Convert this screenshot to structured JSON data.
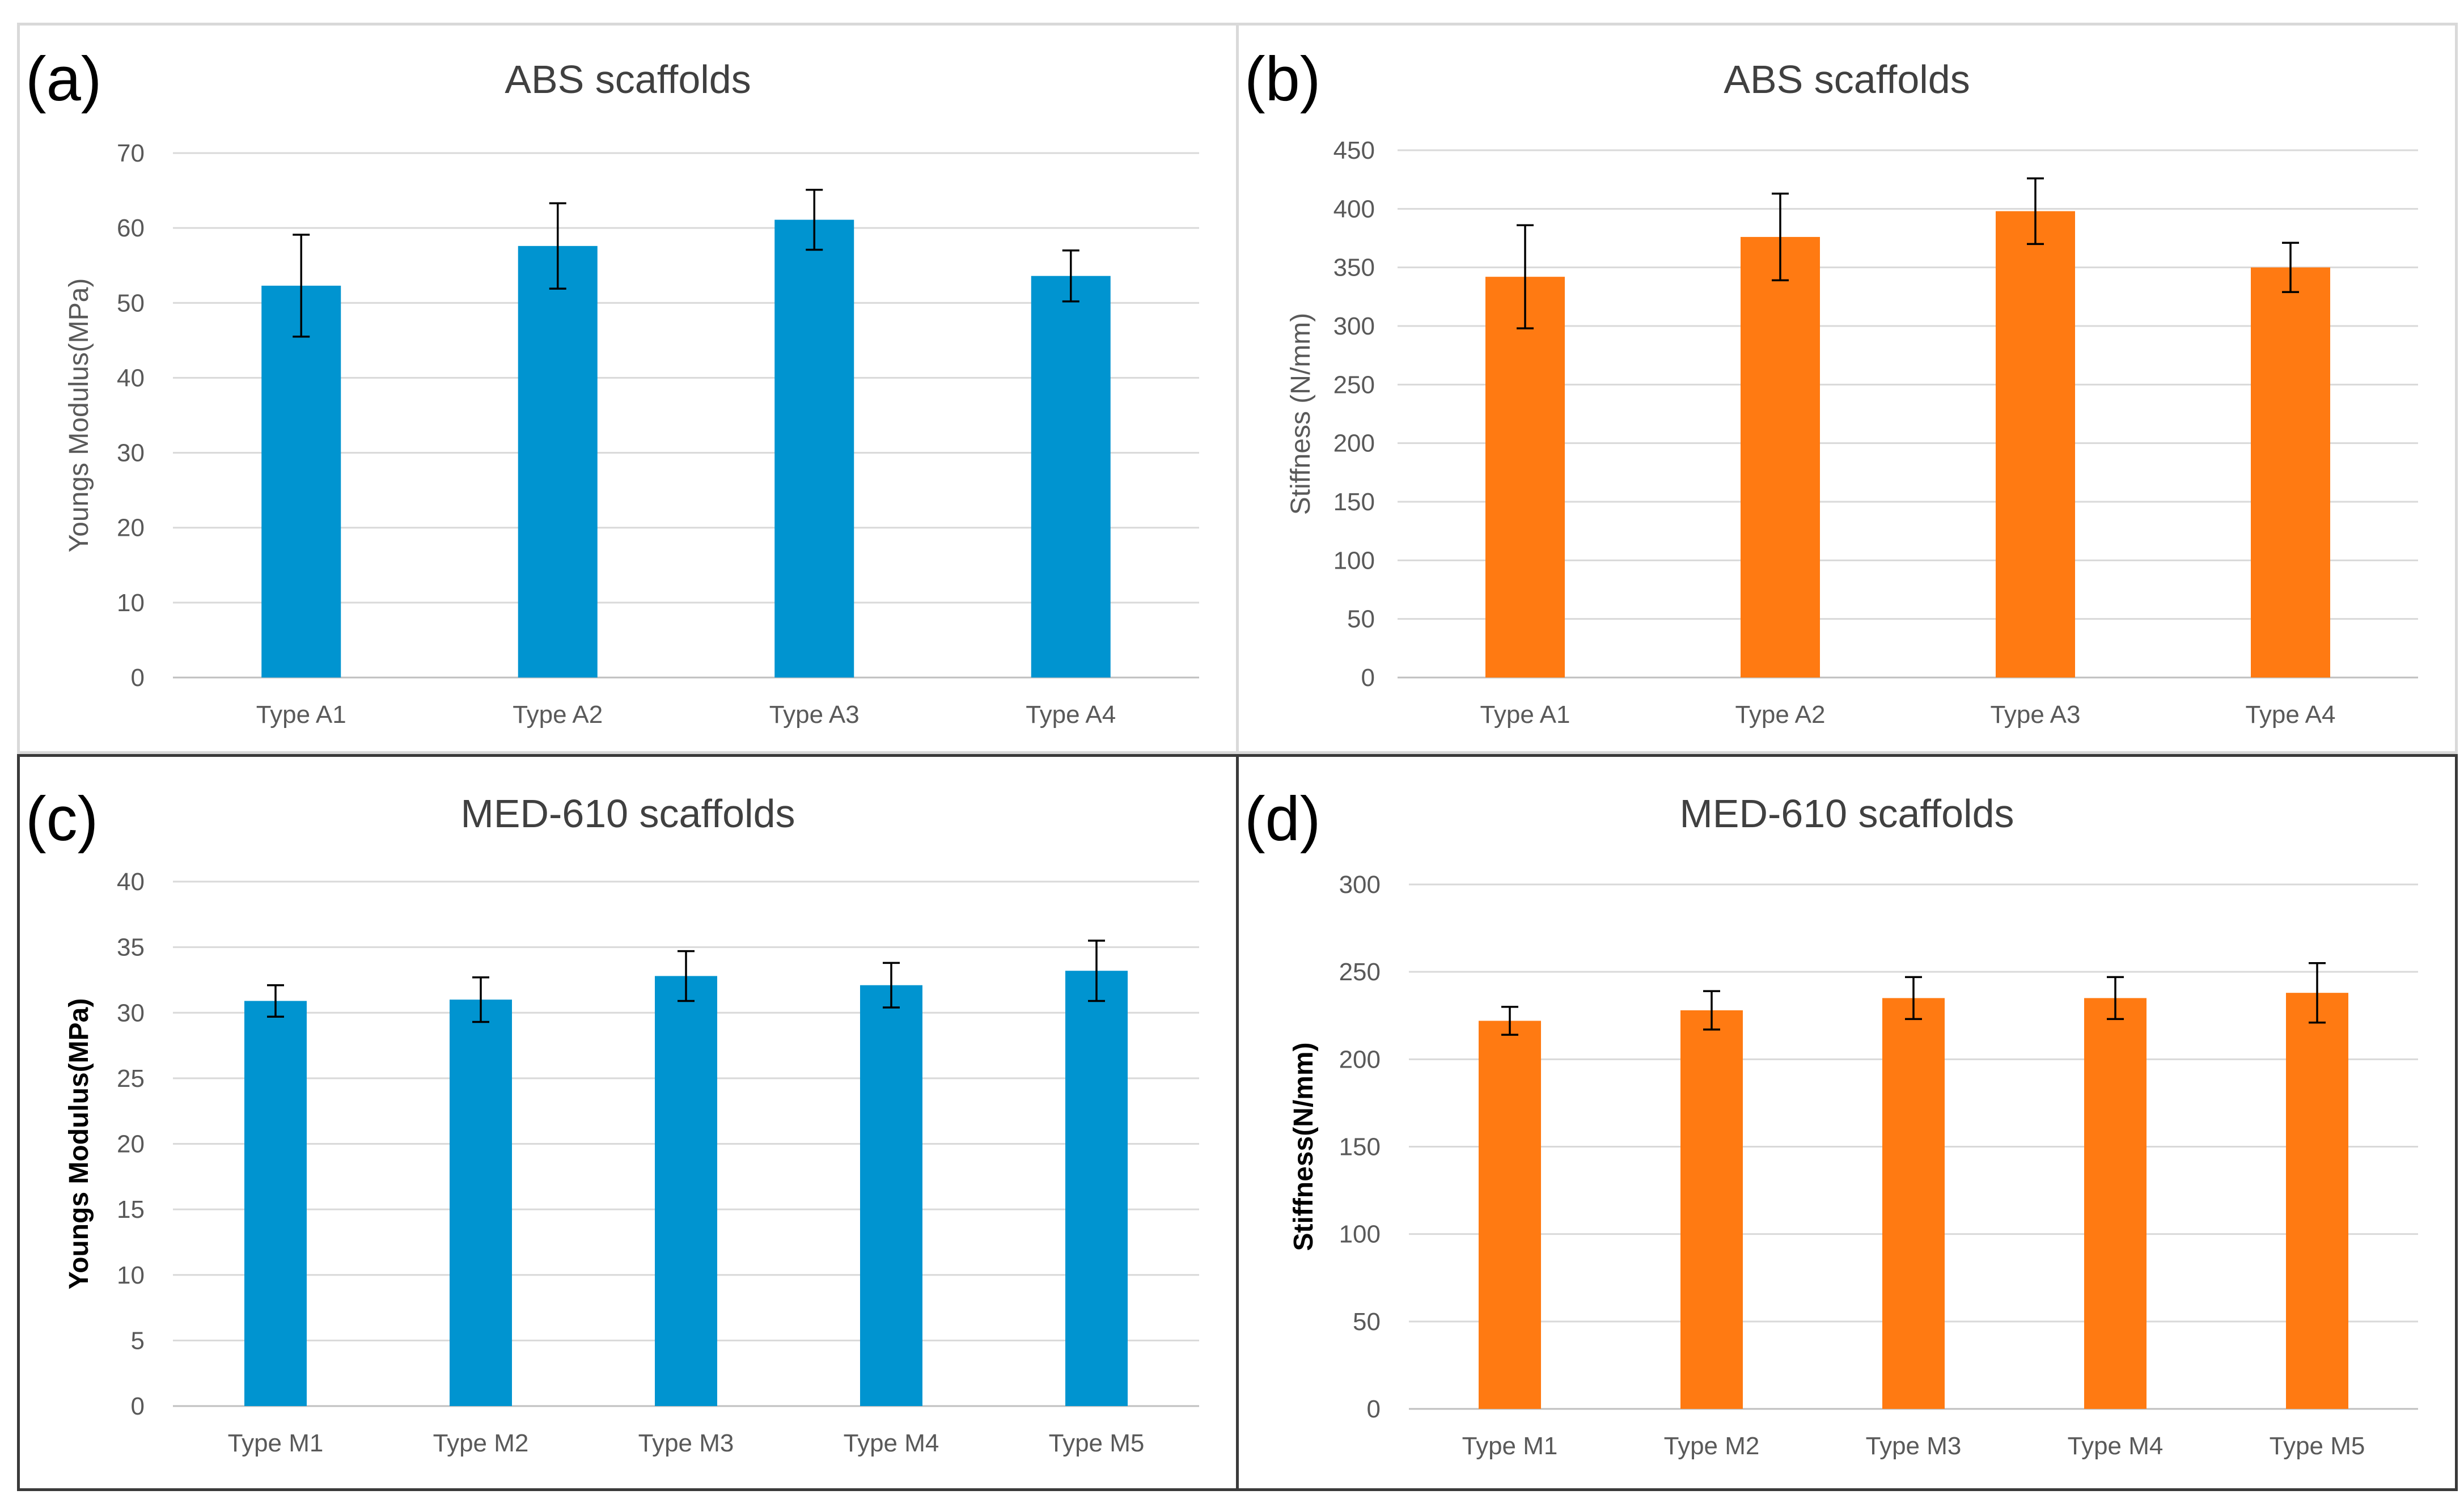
{
  "panels": [
    {
      "label": "(a)",
      "title": "ABS scaffolds"
    },
    {
      "label": "(b)",
      "title": "ABS scaffolds"
    },
    {
      "label": "(c)",
      "title": "MED-610 scaffolds"
    },
    {
      "label": "(d)",
      "title": "MED-610 scaffolds"
    }
  ],
  "chart_data": [
    {
      "type": "bar",
      "title": "ABS scaffolds",
      "categories": [
        "Type A1",
        "Type A2",
        "Type A3",
        "Type A4"
      ],
      "values": [
        52.3,
        57.6,
        61.1,
        53.6
      ],
      "errors": [
        6.8,
        5.7,
        4.0,
        3.4
      ],
      "xlabel": "",
      "ylabel": "Youngs Modulus(MPa)",
      "ylim": [
        0,
        70
      ],
      "yticks": [
        0,
        10,
        20,
        30,
        40,
        50,
        60,
        70
      ],
      "color": "#0094d0",
      "grid": true
    },
    {
      "type": "bar",
      "title": "ABS scaffolds",
      "categories": [
        "Type A1",
        "Type A2",
        "Type A3",
        "Type A4"
      ],
      "values": [
        342,
        376,
        398,
        350
      ],
      "errors": [
        44,
        37,
        28,
        21
      ],
      "xlabel": "",
      "ylabel": "Stiffness (N/mm)",
      "ylim": [
        0,
        450
      ],
      "yticks": [
        0,
        50,
        100,
        150,
        200,
        250,
        300,
        350,
        400,
        450
      ],
      "color": "#ff7a12",
      "grid": true
    },
    {
      "type": "bar",
      "title": "MED-610 scaffolds",
      "categories": [
        "Type M1",
        "Type M2",
        "Type M3",
        "Type M4",
        "Type M5"
      ],
      "values": [
        30.9,
        31.0,
        32.8,
        32.1,
        33.2
      ],
      "errors": [
        1.2,
        1.7,
        1.9,
        1.7,
        2.3
      ],
      "xlabel": "",
      "ylabel": "Youngs Modulus(MPa)",
      "ylim": [
        0,
        40
      ],
      "yticks": [
        0,
        5,
        10,
        15,
        20,
        25,
        30,
        35,
        40
      ],
      "color": "#0094d0",
      "grid": true
    },
    {
      "type": "bar",
      "title": "MED-610 scaffolds",
      "categories": [
        "Type M1",
        "Type M2",
        "Type M3",
        "Type M4",
        "Type M5"
      ],
      "values": [
        222,
        228,
        235,
        235,
        238
      ],
      "errors": [
        8,
        11,
        12,
        12,
        17
      ],
      "xlabel": "",
      "ylabel": "Stiffness(N/mm)",
      "ylim": [
        0,
        300
      ],
      "yticks": [
        0,
        50,
        100,
        150,
        200,
        250,
        300
      ],
      "color": "#ff7a12",
      "grid": true
    }
  ]
}
